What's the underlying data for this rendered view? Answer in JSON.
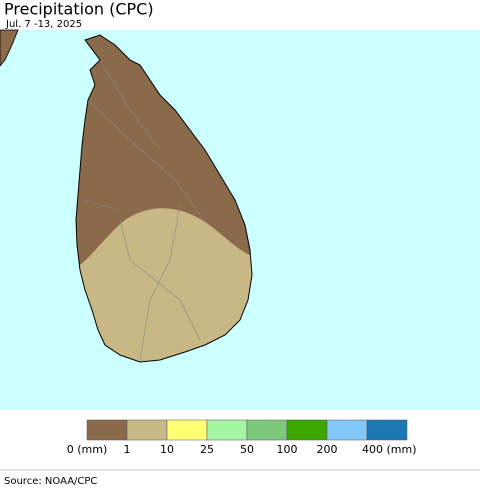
{
  "header": {
    "title": "Precipitation (CPC)",
    "subtitle": "Jul. 7 -13, 2025"
  },
  "legend": {
    "items": [
      {
        "label": "0 (mm)",
        "color": "#8b6a4b"
      },
      {
        "label": "1",
        "color": "#c8b886"
      },
      {
        "label": "10",
        "color": "#ffff73"
      },
      {
        "label": "25",
        "color": "#a3f5a3"
      },
      {
        "label": "50",
        "color": "#7cc87c"
      },
      {
        "label": "100",
        "color": "#3ca800"
      },
      {
        "label": "200",
        "color": "#82c8fa"
      },
      {
        "label": "400 (mm)",
        "color": "#1e78b4"
      }
    ]
  },
  "footer": {
    "source": "Source: NOAA/CPC"
  }
}
